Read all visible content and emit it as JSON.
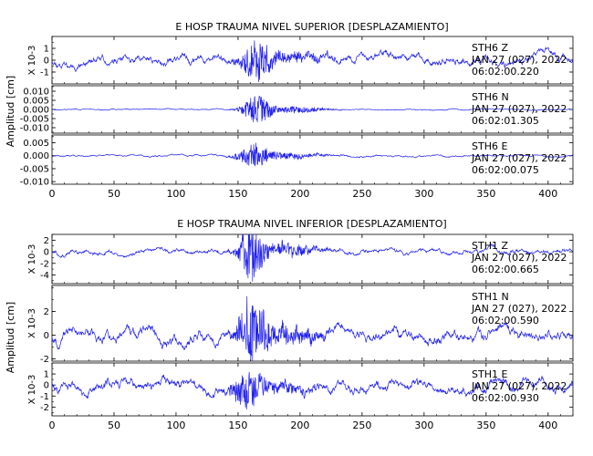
{
  "colors": {
    "trace": "#2222ee",
    "axis": "#000000",
    "background": "#ffffff"
  },
  "chart_data": [
    {
      "type": "line",
      "title": "E HOSP TRAUMA NIVEL SUPERIOR [DESPLAZAMIENTO]",
      "ylabel": "Amplitud [cm]",
      "x_ticks": [
        0,
        50,
        100,
        150,
        200,
        250,
        300,
        350,
        400
      ],
      "xlim": [
        0,
        420
      ],
      "traces": [
        {
          "station": "STH6   Z",
          "date": "JAN 27 (027), 2022",
          "time": "06:02:00.220",
          "scale_label": "X 10-3",
          "ylim": [
            -2,
            2
          ],
          "y_ticks": [
            -1,
            0,
            1
          ],
          "y_tick_labels": [
            "-1",
            "0",
            "1"
          ],
          "noise_amp": 0.5,
          "burst_amp": 1.6,
          "burst_center": 165,
          "burst_width": 12,
          "seed": 11
        },
        {
          "station": "STH6   N",
          "date": "JAN 27 (027), 2022",
          "time": "06:02:01.305",
          "scale_label": "",
          "ylim": [
            -0.013,
            0.013
          ],
          "y_ticks": [
            -0.01,
            -0.005,
            0.0,
            0.005,
            0.01
          ],
          "y_tick_labels": [
            "-0.010",
            "-0.005",
            "0.000",
            "0.005",
            "0.010"
          ],
          "noise_amp": 0.0004,
          "burst_amp": 0.0075,
          "burst_center": 165,
          "burst_width": 11,
          "seed": 23
        },
        {
          "station": "STH6   E",
          "date": "JAN 27 (027), 2022",
          "time": "06:02:00.075",
          "scale_label": "",
          "ylim": [
            -0.011,
            0.008
          ],
          "y_ticks": [
            -0.01,
            -0.005,
            0.0,
            0.005
          ],
          "y_tick_labels": [
            "-0.010",
            "-0.005",
            "0.000",
            "0.005"
          ],
          "noise_amp": 0.0005,
          "burst_amp": 0.0045,
          "burst_center": 163,
          "burst_width": 13,
          "seed": 37
        }
      ]
    },
    {
      "type": "line",
      "title": "E HOSP TRAUMA NIVEL INFERIOR [DESPLAZAMIENTO]",
      "ylabel": "Amplitud [cm]",
      "x_ticks": [
        0,
        50,
        100,
        150,
        200,
        250,
        300,
        350,
        400
      ],
      "xlim": [
        0,
        420
      ],
      "traces": [
        {
          "station": "STH1   Z",
          "date": "JAN 27 (027), 2022",
          "time": "06:02:00.665",
          "scale_label": "X 10-3",
          "ylim": [
            -5.5,
            3
          ],
          "y_ticks": [
            -4,
            -2,
            0,
            2
          ],
          "y_tick_labels": [
            "-4",
            "-2",
            "0",
            "2"
          ],
          "noise_amp": 0.6,
          "burst_amp": 4.5,
          "burst_center": 160,
          "burst_width": 10,
          "seed": 51
        },
        {
          "station": "STH1   N",
          "date": "JAN 27 (027), 2022",
          "time": "06:02:00.590",
          "scale_label": "X 10-3",
          "ylim": [
            -2.2,
            4.2
          ],
          "y_ticks": [
            -2,
            0,
            2
          ],
          "y_tick_labels": [
            "-2",
            "0",
            "2"
          ],
          "noise_amp": 0.7,
          "burst_amp": 2.8,
          "burst_center": 162,
          "burst_width": 11,
          "seed": 67
        },
        {
          "station": "STH1   E",
          "date": "JAN 27 (027), 2022",
          "time": "06:02:00.930",
          "scale_label": "X 10-3",
          "ylim": [
            -2.8,
            2
          ],
          "y_ticks": [
            -2,
            -1,
            0,
            1
          ],
          "y_tick_labels": [
            "-2",
            "-1",
            "0",
            "1"
          ],
          "noise_amp": 0.7,
          "burst_amp": 1.6,
          "burst_center": 158,
          "burst_width": 12,
          "seed": 83
        }
      ]
    }
  ]
}
